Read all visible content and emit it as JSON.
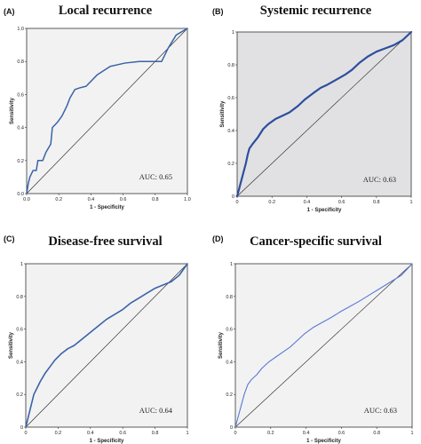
{
  "chart_data": [
    {
      "type": "line",
      "panel_label": "(A)",
      "title": "Local recurrence",
      "xlabel": "1 - Specificity",
      "ylabel": "Sensitivity",
      "xlim": [
        0,
        1
      ],
      "ylim": [
        0,
        1
      ],
      "xticks": [
        "0.0",
        "0.2",
        "0.4",
        "0.6",
        "0.8",
        "1.0"
      ],
      "yticks": [
        "0.0",
        "0.2",
        "0.4",
        "0.6",
        "0.8",
        "1.0"
      ],
      "annotation": "AUC: 0.65",
      "plot_background": "#f2f2f2",
      "line_color": "#3a63a8",
      "series": [
        {
          "x": [
            0,
            0.01,
            0.02,
            0.03,
            0.04,
            0.06,
            0.07,
            0.1,
            0.12,
            0.15,
            0.16,
            0.19,
            0.22,
            0.25,
            0.27,
            0.3,
            0.33,
            0.37,
            0.44,
            0.52,
            0.61,
            0.7,
            0.79,
            0.84,
            0.88,
            0.93,
            1.0
          ],
          "y": [
            0,
            0.06,
            0.1,
            0.12,
            0.14,
            0.14,
            0.2,
            0.2,
            0.25,
            0.3,
            0.4,
            0.43,
            0.47,
            0.53,
            0.58,
            0.63,
            0.64,
            0.65,
            0.72,
            0.77,
            0.79,
            0.8,
            0.8,
            0.8,
            0.88,
            0.96,
            1.0
          ]
        }
      ]
    },
    {
      "type": "line",
      "panel_label": "(B)",
      "title": "Systemic recurrence",
      "xlabel": "1 - Specificity",
      "ylabel": "Sensitivity",
      "xlim": [
        0,
        1
      ],
      "ylim": [
        0,
        1
      ],
      "xticks": [
        "0",
        "0.2",
        "0.4",
        "0.6",
        "0.8",
        "1"
      ],
      "yticks": [
        "0",
        "0.2",
        "0.4",
        "0.6",
        "0.8",
        "1"
      ],
      "annotation": "AUC: 0.63",
      "plot_background": "#e1e1e4",
      "line_color": "#2e4e9c",
      "series": [
        {
          "x": [
            0,
            0.01,
            0.02,
            0.03,
            0.04,
            0.05,
            0.06,
            0.07,
            0.09,
            0.12,
            0.15,
            0.18,
            0.22,
            0.26,
            0.3,
            0.35,
            0.39,
            0.44,
            0.48,
            0.52,
            0.57,
            0.62,
            0.66,
            0.7,
            0.75,
            0.8,
            0.85,
            0.9,
            0.95,
            1.0
          ],
          "y": [
            0,
            0.04,
            0.08,
            0.12,
            0.16,
            0.2,
            0.25,
            0.29,
            0.32,
            0.36,
            0.41,
            0.44,
            0.47,
            0.49,
            0.51,
            0.55,
            0.59,
            0.63,
            0.66,
            0.68,
            0.71,
            0.74,
            0.77,
            0.81,
            0.85,
            0.88,
            0.9,
            0.92,
            0.95,
            1.0
          ]
        }
      ]
    },
    {
      "type": "line",
      "panel_label": "(C)",
      "title": "Disease-free survival",
      "xlabel": "1 - Specificity",
      "ylabel": "Sensitivity",
      "xlim": [
        0,
        1
      ],
      "ylim": [
        0,
        1
      ],
      "xticks": [
        "0",
        "0.2",
        "0.4",
        "0.6",
        "0.8",
        "1"
      ],
      "yticks": [
        "0",
        "0.2",
        "0.4",
        "0.6",
        "0.8",
        "1"
      ],
      "annotation": "AUC: 0.64",
      "plot_background": "#f2f2f2",
      "line_color": "#3a63a8",
      "series": [
        {
          "x": [
            0,
            0.01,
            0.02,
            0.03,
            0.04,
            0.05,
            0.07,
            0.09,
            0.12,
            0.15,
            0.18,
            0.22,
            0.26,
            0.3,
            0.35,
            0.4,
            0.45,
            0.5,
            0.55,
            0.6,
            0.65,
            0.7,
            0.75,
            0.8,
            0.85,
            0.9,
            0.95,
            1.0
          ],
          "y": [
            0,
            0.04,
            0.08,
            0.12,
            0.16,
            0.2,
            0.24,
            0.28,
            0.33,
            0.37,
            0.41,
            0.45,
            0.48,
            0.5,
            0.54,
            0.58,
            0.62,
            0.66,
            0.69,
            0.72,
            0.76,
            0.79,
            0.82,
            0.85,
            0.87,
            0.89,
            0.93,
            1.0
          ]
        }
      ]
    },
    {
      "type": "line",
      "panel_label": "(D)",
      "title": "Cancer-specific survival",
      "xlabel": "1 - Specificity",
      "ylabel": "Sensitivity",
      "xlim": [
        0,
        1
      ],
      "ylim": [
        0,
        1
      ],
      "xticks": [
        "0",
        "0.2",
        "0.4",
        "0.6",
        "0.8",
        "1"
      ],
      "yticks": [
        "0",
        "0.2",
        "0.4",
        "0.6",
        "0.8",
        "1"
      ],
      "annotation": "AUC: 0.63",
      "plot_background": "#f2f2f2",
      "line_color": "#5a78d6",
      "series": [
        {
          "x": [
            0,
            0.01,
            0.02,
            0.03,
            0.04,
            0.05,
            0.06,
            0.07,
            0.09,
            0.12,
            0.15,
            0.19,
            0.23,
            0.27,
            0.31,
            0.35,
            0.39,
            0.44,
            0.49,
            0.54,
            0.6,
            0.65,
            0.7,
            0.76,
            0.82,
            0.88,
            0.94,
            1.0
          ],
          "y": [
            0,
            0.04,
            0.08,
            0.12,
            0.16,
            0.2,
            0.23,
            0.26,
            0.29,
            0.32,
            0.36,
            0.4,
            0.43,
            0.46,
            0.49,
            0.53,
            0.57,
            0.61,
            0.64,
            0.67,
            0.71,
            0.74,
            0.77,
            0.81,
            0.85,
            0.89,
            0.93,
            1.0
          ]
        }
      ]
    }
  ]
}
